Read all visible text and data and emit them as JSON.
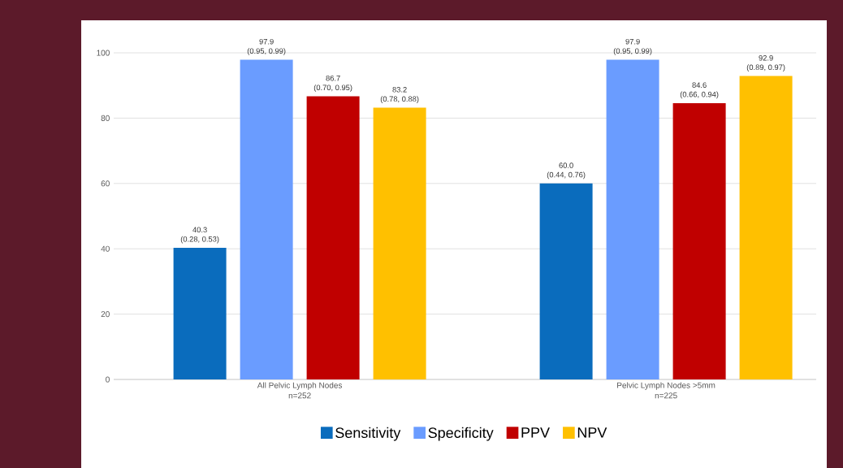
{
  "chart_data": {
    "type": "bar",
    "categories": [
      "All Pelvic Lymph Nodes",
      "Pelvic Lymph Nodes >5mm"
    ],
    "series": [
      {
        "name": "Sensitivity",
        "color": "#0a6cbd",
        "values": [
          40.3,
          60.0
        ],
        "value_labels": [
          "40.3",
          "60.0"
        ]
      },
      {
        "name": "Specificity",
        "color": "#6a9cff",
        "values": [
          97.9,
          97.9
        ],
        "value_labels": [
          "97.9",
          "97.9"
        ]
      },
      {
        "name": "PPV",
        "color": "#c00000",
        "values": [
          86.7,
          84.6
        ],
        "value_labels": [
          "86.7",
          "84.6"
        ]
      },
      {
        "name": "NPV",
        "color": "#ffc000",
        "values": [
          83.2,
          92.9
        ],
        "value_labels": [
          "83.2",
          "92.9"
        ]
      }
    ],
    "ylim": [
      0,
      100
    ],
    "yticks": [
      0,
      20,
      40,
      60,
      80,
      100
    ],
    "grid": "y",
    "legend": "bottom",
    "annotations": [
      "(0.28, 0.53)",
      "(0.95, 0.99)",
      "(0.70, 0.95)",
      "(0.78, 0.88)",
      "(0.44, 0.76)",
      "(0.95, 0.99)",
      "(0.66, 0.94)",
      "(0.89, 0.97)",
      "n=252",
      "n=225"
    ]
  }
}
